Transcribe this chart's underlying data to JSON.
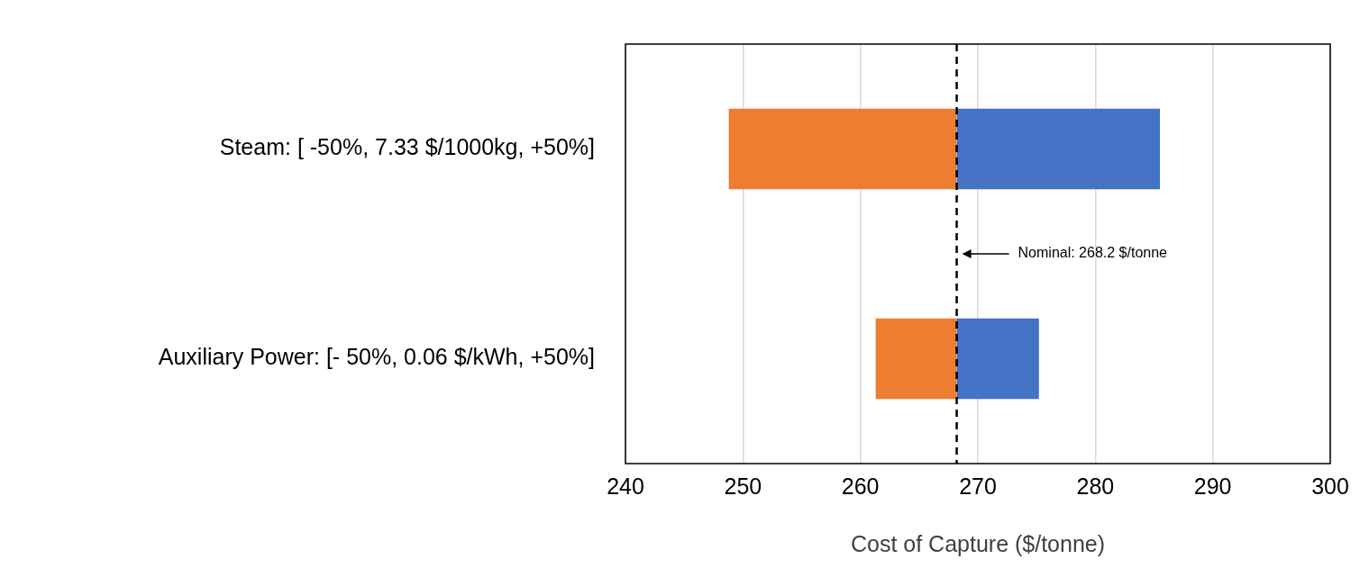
{
  "chart_data": {
    "type": "bar",
    "orientation": "horizontal",
    "xlabel": "Cost of Capture ($/tonne)",
    "categories": [
      "Steam: [ -50%, 7.33 $/1000kg, +50%]",
      "Auxiliary Power: [- 50%, 0.06 $/kWh, +50%]"
    ],
    "series": [
      {
        "color": "#ed7d31",
        "base": [
          248.8,
          261.3
        ],
        "values": [
          19.4,
          6.9
        ]
      },
      {
        "color": "#4472c4",
        "base": [
          268.2,
          268.2
        ],
        "values": [
          17.3,
          7.0
        ]
      }
    ],
    "xlim": [
      240,
      300
    ],
    "xticks": [
      240,
      250,
      260,
      270,
      280,
      290,
      300
    ],
    "grid": "x",
    "legend": false,
    "ref_lines": [
      {
        "axis": "x",
        "value": 268.2,
        "label": "Nominal: 268.2 $/tonne",
        "color": "#000000",
        "line_style": "dashed"
      }
    ]
  }
}
